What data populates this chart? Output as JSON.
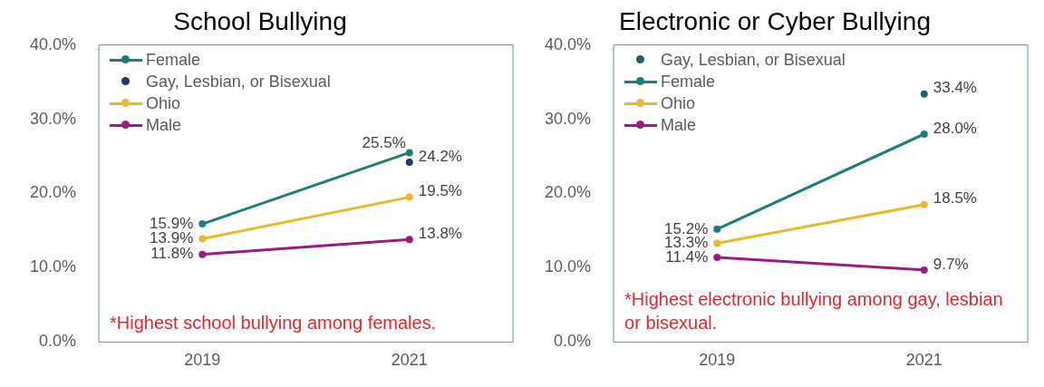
{
  "chart_data": [
    {
      "type": "line",
      "title": "School Bullying",
      "categories": [
        "2019",
        "2021"
      ],
      "ylim": [
        0,
        40
      ],
      "yticks": [
        {
          "value": 0,
          "label": "0.0%"
        },
        {
          "value": 10,
          "label": "10.0%"
        },
        {
          "value": 20,
          "label": "20.0%"
        },
        {
          "value": 30,
          "label": "30.0%"
        },
        {
          "value": 40,
          "label": "40.0%"
        }
      ],
      "grid": false,
      "legend": "top left",
      "marker": "circle",
      "annotations": [
        "*Highest school bullying among females."
      ],
      "series": [
        {
          "name": "Female",
          "color": "#1a7f7a",
          "values": [
            15.9,
            25.5
          ],
          "value_labels": [
            "15.9%",
            "25.5%"
          ]
        },
        {
          "name": "Gay, Lesbian, or Bisexual",
          "type": "scatter",
          "color": "#1f3864",
          "values": [
            null,
            24.2
          ],
          "value_labels": [
            null,
            "24.2%"
          ]
        },
        {
          "name": "Ohio",
          "color": "#e8b830",
          "values": [
            13.9,
            19.5
          ],
          "value_labels": [
            "13.9%",
            "19.5%"
          ]
        },
        {
          "name": "Male",
          "color": "#9b1b7f",
          "values": [
            11.8,
            13.8
          ],
          "value_labels": [
            "11.8%",
            "13.8%"
          ]
        }
      ]
    },
    {
      "type": "line",
      "title": "Electronic or Cyber Bullying",
      "categories": [
        "2019",
        "2021"
      ],
      "ylim": [
        0,
        40
      ],
      "yticks": [
        {
          "value": 0,
          "label": "0.0%"
        },
        {
          "value": 10,
          "label": "10.0%"
        },
        {
          "value": 20,
          "label": "20.0%"
        },
        {
          "value": 30,
          "label": "30.0%"
        },
        {
          "value": 40,
          "label": "40.0%"
        }
      ],
      "grid": false,
      "legend": "top left",
      "marker": "circle",
      "annotations": [
        "*Highest electronic bullying among gay, lesbian or bisexual."
      ],
      "series": [
        {
          "name": "Gay, Lesbian, or Bisexual",
          "type": "scatter",
          "color": "#1f5f6e",
          "values": [
            null,
            33.4
          ],
          "value_labels": [
            null,
            "33.4%"
          ]
        },
        {
          "name": "Female",
          "color": "#1a7f7a",
          "values": [
            15.2,
            28.0
          ],
          "value_labels": [
            "15.2%",
            "28.0%"
          ]
        },
        {
          "name": "Ohio",
          "color": "#e8b830",
          "values": [
            13.3,
            18.5
          ],
          "value_labels": [
            "13.3%",
            "18.5%"
          ]
        },
        {
          "name": "Male",
          "color": "#9b1b7f",
          "values": [
            11.4,
            9.7
          ],
          "value_labels": [
            "11.4%",
            "9.7%"
          ]
        }
      ]
    }
  ]
}
